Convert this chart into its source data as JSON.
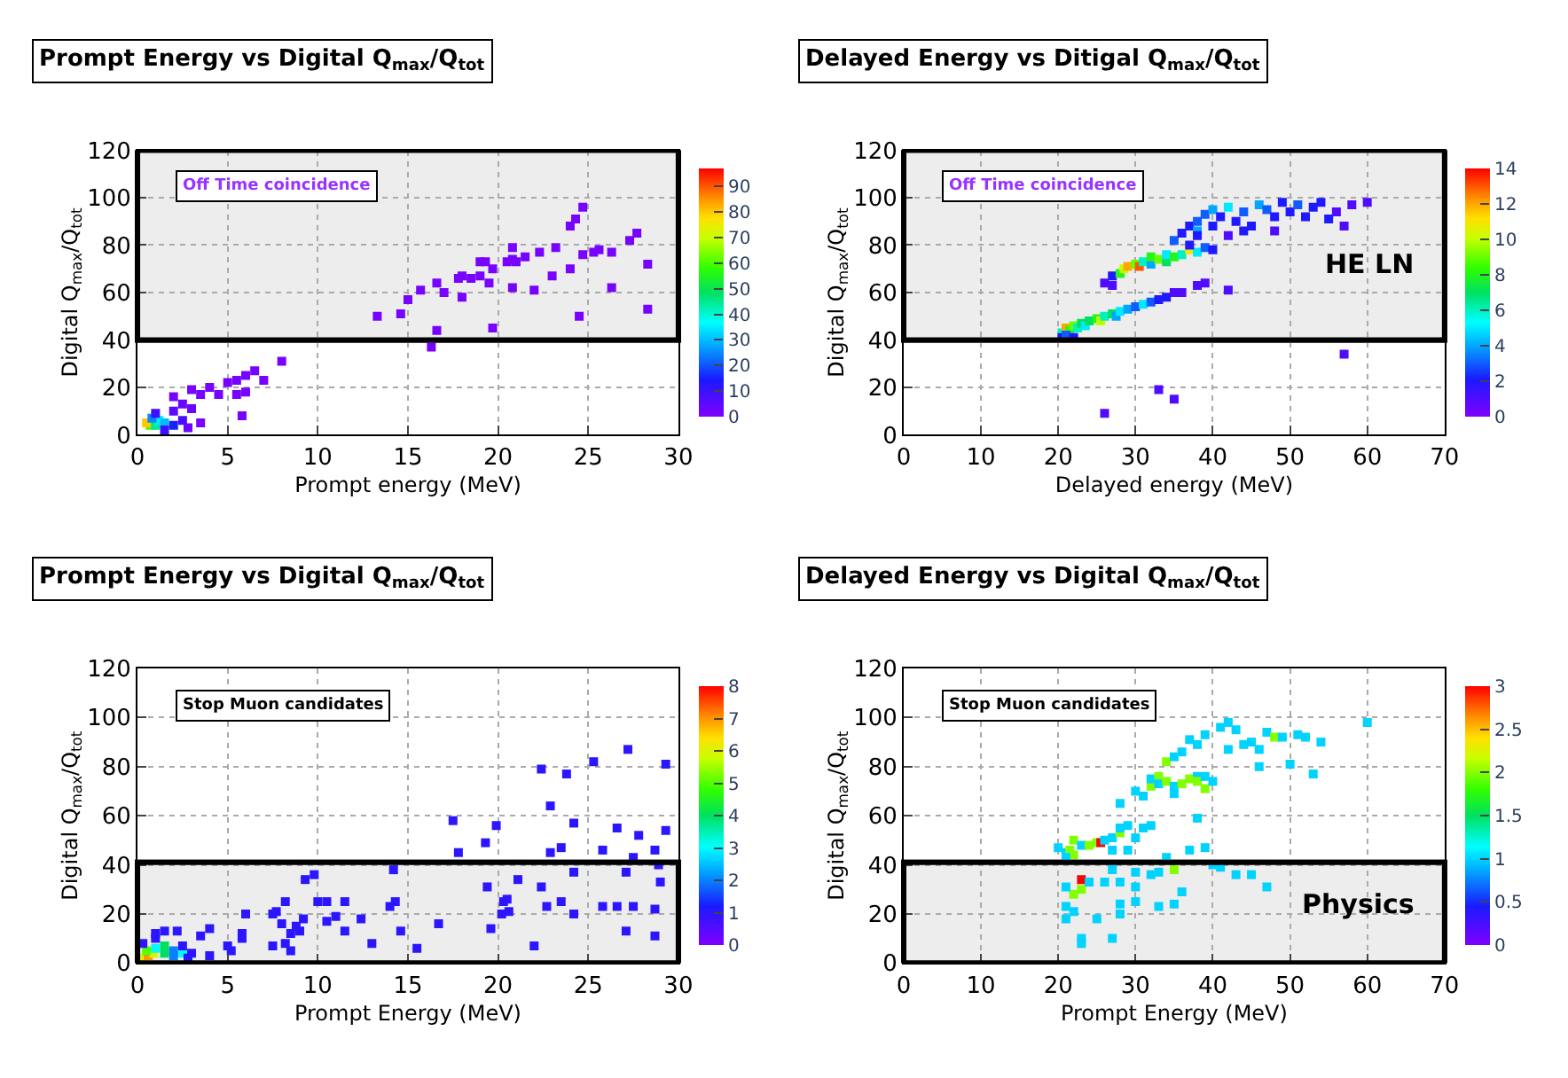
{
  "chart_data": [
    {
      "type": "scatter",
      "title": "Prompt Energy vs Digital Q$_{max}$/Q$_{tot}$",
      "xlabel": "Prompt energy (MeV)",
      "ylabel": "Digital Q$_{max}$/Q$_{tot}$",
      "xlim": [
        0,
        30
      ],
      "xticks": [
        0,
        5,
        10,
        15,
        20,
        25,
        30
      ],
      "ylim": [
        0,
        120
      ],
      "yticks": [
        0,
        20,
        40,
        60,
        80,
        100,
        120
      ],
      "clim": [
        0,
        97
      ],
      "cticks": [
        0,
        10,
        20,
        30,
        40,
        50,
        60,
        70,
        80,
        90
      ],
      "grid": true,
      "marker": "square",
      "annotations": [
        "Off Time coincidence"
      ],
      "bands": [
        {
          "axis": "y",
          "from": 40,
          "to": 120,
          "color": "#000000"
        }
      ],
      "x": [
        0.7,
        0.5,
        1,
        1.2,
        0.8,
        1.5,
        2,
        2.5,
        1,
        2,
        2.5,
        3,
        1.5,
        2.8,
        3.5,
        2,
        3,
        3.5,
        4,
        4.5,
        5,
        5.5,
        5.5,
        6,
        6,
        6.5,
        7,
        8,
        5.8,
        16.3,
        16.6,
        19.7,
        13.3,
        14.6,
        15,
        15.7,
        16.6,
        17,
        18,
        17.8,
        18,
        18.5,
        19,
        19.3,
        19.5,
        19.7,
        19,
        20.5,
        20.8,
        20.8,
        21,
        20.8,
        21.5,
        22,
        22.3,
        23.2,
        23,
        24,
        24,
        24.3,
        24.5,
        24.7,
        24.7,
        25.3,
        25.6,
        26.3,
        26.3,
        27.3,
        27.7,
        28.3,
        28.3
      ],
      "values": [
        4,
        5,
        4,
        6,
        7,
        5,
        4,
        6,
        9,
        10,
        13,
        11,
        2,
        3,
        5,
        16,
        19,
        17,
        20,
        17,
        22,
        17,
        23,
        25,
        18,
        27,
        23,
        31,
        8,
        37,
        44,
        45,
        50,
        51,
        57,
        61,
        64,
        60,
        58,
        66,
        67,
        66,
        73,
        73,
        64,
        70,
        67,
        73,
        74,
        79,
        73,
        62,
        75,
        61,
        77,
        79,
        67,
        70,
        88,
        91,
        50,
        96,
        76,
        77,
        78,
        77,
        62,
        82,
        85,
        72,
        53
      ],
      "cvalues": [
        60,
        80,
        45,
        35,
        25,
        30,
        15,
        8,
        10,
        5,
        3,
        3,
        10,
        3,
        1,
        1,
        1,
        1,
        1,
        1,
        1,
        1,
        1,
        1,
        1,
        1,
        1,
        1,
        1,
        1,
        1,
        1,
        1,
        1,
        1,
        1,
        1,
        1,
        1,
        1,
        1,
        1,
        1,
        1,
        1,
        1,
        1,
        1,
        1,
        1,
        1,
        1,
        1,
        1,
        1,
        1,
        1,
        1,
        1,
        1,
        1,
        1,
        1,
        1,
        1,
        1,
        1,
        1,
        1,
        1,
        1
      ]
    },
    {
      "type": "scatter",
      "title": "Delayed Energy vs Ditigal Q$_{max}$/Q$_{tot}$",
      "xlabel": "Delayed energy (MeV)",
      "ylabel": "Digital Q$_{max}$/Q$_{tot}$",
      "xlim": [
        0,
        70
      ],
      "xticks": [
        0,
        10,
        20,
        30,
        40,
        50,
        60,
        70
      ],
      "ylim": [
        0,
        120
      ],
      "yticks": [
        0,
        20,
        40,
        60,
        80,
        100,
        120
      ],
      "clim": [
        0,
        14
      ],
      "cticks": [
        0,
        2,
        4,
        6,
        8,
        10,
        12,
        14
      ],
      "grid": true,
      "marker": "square",
      "annotations": [
        "Off Time coincidence",
        "HE LN"
      ],
      "bands": [
        {
          "axis": "y",
          "from": 40,
          "to": 120,
          "color": "#000000"
        }
      ],
      "x": [
        20.5,
        21,
        21.5,
        22,
        22.5,
        23,
        23.5,
        24,
        25,
        25.5,
        26,
        27,
        27.5,
        28,
        29,
        30,
        31,
        32,
        33,
        34,
        35,
        36,
        38,
        39,
        42,
        20.5,
        21,
        22,
        27,
        28,
        28.5,
        29,
        30,
        30.5,
        31,
        32,
        32,
        33,
        34,
        34,
        35,
        36,
        37,
        38,
        39,
        40,
        37,
        27,
        26,
        35,
        36,
        37,
        38,
        38,
        39,
        40,
        40,
        41,
        42,
        43,
        44,
        45,
        46,
        47,
        48,
        49,
        50,
        51,
        52,
        53,
        54,
        55,
        56,
        57,
        58,
        60,
        44,
        48,
        42,
        38,
        57,
        33,
        35,
        26
      ],
      "values": [
        43,
        45,
        44,
        46,
        45,
        47,
        46,
        48,
        49,
        48,
        50,
        51,
        50,
        52,
        53,
        54,
        55,
        56,
        57,
        58,
        60,
        60,
        63,
        64,
        61,
        41,
        42,
        41,
        67,
        68,
        70,
        71,
        72,
        71,
        73,
        72,
        75,
        74,
        73,
        76,
        75,
        76,
        78,
        77,
        79,
        78,
        80,
        63,
        64,
        82,
        85,
        88,
        90,
        86,
        93,
        95,
        88,
        92,
        96,
        90,
        94,
        88,
        97,
        95,
        92,
        98,
        94,
        97,
        92,
        96,
        98,
        91,
        94,
        88,
        97,
        98,
        86,
        86,
        84,
        84,
        34,
        19,
        15,
        9
      ],
      "cvalues": [
        6,
        12,
        8,
        9,
        6,
        7,
        5,
        7,
        8,
        10,
        6,
        7,
        4,
        5,
        4,
        3,
        5,
        3,
        2,
        2,
        1,
        1,
        1,
        1,
        1,
        2,
        3,
        2,
        2,
        8,
        10,
        12,
        9,
        13,
        6,
        4,
        8,
        9,
        7,
        5,
        8,
        6,
        11,
        5,
        3,
        2,
        2,
        1,
        1,
        3,
        2,
        2,
        3,
        4,
        3,
        4,
        2,
        2,
        5,
        2,
        3,
        2,
        4,
        3,
        2,
        2,
        2,
        3,
        2,
        2,
        2,
        2,
        1,
        1,
        1,
        1,
        2,
        1,
        1,
        2,
        1,
        1,
        1,
        1
      ]
    },
    {
      "type": "scatter",
      "title": "Prompt Energy vs Digital Q$_{max}$/Q$_{tot}$",
      "xlabel": "Prompt Energy (MeV)",
      "ylabel": "Digital Q$_{max}$/Q$_{tot}$",
      "xlim": [
        0,
        30
      ],
      "xticks": [
        0,
        5,
        10,
        15,
        20,
        25,
        30
      ],
      "ylim": [
        0,
        120
      ],
      "yticks": [
        0,
        20,
        40,
        60,
        80,
        100,
        120
      ],
      "clim": [
        0,
        8
      ],
      "cticks": [
        0,
        1,
        2,
        3,
        4,
        5,
        6,
        7,
        8
      ],
      "grid": true,
      "marker": "square",
      "annotations": [
        "Stop Muon candidates"
      ],
      "bands": [
        {
          "axis": "y",
          "from": 0,
          "to": 41,
          "color": "#000000"
        }
      ],
      "x": [
        0.3,
        0.6,
        0.9,
        0.5,
        1,
        1.5,
        1.5,
        2,
        2.5,
        2.5,
        0.3,
        1,
        1,
        1.5,
        2.2,
        2,
        2.8,
        3,
        4,
        3.5,
        4,
        5,
        5.2,
        5.8,
        5.8,
        6,
        7.5,
        7.7,
        7.5,
        8,
        8.2,
        8.2,
        8.5,
        8.5,
        8.8,
        9,
        9.2,
        9.3,
        9.8,
        10,
        10.5,
        10.5,
        11,
        11.5,
        11.5,
        12.4,
        13,
        14,
        14.2,
        14.3,
        14.6,
        15.5,
        16.7,
        17.5,
        17.8,
        19.4,
        19.3,
        19.6,
        19.9,
        20.2,
        20.3,
        20.5,
        20.6,
        21.1,
        22,
        22.4,
        22.4,
        22.7,
        22.9,
        22.9,
        23.5,
        23.5,
        23.8,
        24.2,
        24.2,
        24.2,
        25.3,
        25.8,
        25.8,
        26.6,
        26.6,
        27.1,
        27.1,
        27.2,
        27.5,
        27.5,
        27.8,
        28.7,
        28.7,
        28.7,
        28.9,
        29,
        29.3,
        29.3
      ],
      "values": [
        2,
        3,
        4,
        5,
        6,
        4,
        7,
        5,
        4,
        7,
        8,
        10,
        12,
        13,
        13,
        3,
        2,
        4,
        3,
        11,
        14,
        7,
        5,
        10,
        12,
        20,
        20,
        21,
        7,
        16,
        8,
        25,
        5,
        12,
        15,
        13,
        18,
        34,
        36,
        25,
        25,
        17,
        19,
        13,
        25,
        18,
        8,
        23,
        38,
        25,
        13,
        6,
        16,
        58,
        45,
        31,
        49,
        14,
        56,
        20,
        25,
        26,
        21,
        34,
        7,
        31,
        79,
        23,
        64,
        45,
        25,
        47,
        77,
        37,
        57,
        20,
        82,
        23,
        46,
        23,
        55,
        13,
        37,
        87,
        23,
        43,
        52,
        11,
        22,
        46,
        40,
        33,
        54,
        81
      ],
      "cvalues": [
        6,
        7,
        6,
        5,
        3,
        4,
        4,
        2,
        3,
        1,
        1,
        1,
        1,
        1,
        1,
        2,
        1,
        1,
        1,
        1,
        1,
        1,
        1,
        1,
        1,
        1,
        1,
        1,
        1,
        1,
        1,
        1,
        1,
        1,
        1,
        1,
        1,
        1,
        1,
        1,
        1,
        1,
        1,
        1,
        1,
        1,
        1,
        1,
        1,
        1,
        1,
        1,
        1,
        1,
        1,
        1,
        1,
        1,
        1,
        1,
        1,
        1,
        1,
        1,
        1,
        1,
        1,
        1,
        1,
        1,
        1,
        1,
        1,
        1,
        1,
        1,
        1,
        1,
        1,
        1,
        1,
        1,
        1,
        1,
        1,
        1,
        1,
        1,
        1,
        1,
        1,
        1,
        1,
        1
      ]
    },
    {
      "type": "scatter",
      "title": "Delayed Energy vs Digital Q$_{max}$/Q$_{tot}$",
      "xlabel": "Prompt Energy (MeV)",
      "ylabel": "Digital Q$_{max}$/Q$_{tot}$",
      "xlim": [
        0,
        70
      ],
      "xticks": [
        0,
        10,
        20,
        30,
        40,
        50,
        60,
        70
      ],
      "ylim": [
        0,
        120
      ],
      "yticks": [
        0,
        20,
        40,
        60,
        80,
        100,
        120
      ],
      "clim": [
        0,
        3
      ],
      "cticks": [
        0,
        0.5,
        1,
        1.5,
        2,
        2.5,
        3
      ],
      "grid": true,
      "marker": "square",
      "annotations": [
        "Stop Muon candidates",
        "Physics"
      ],
      "bands": [
        {
          "axis": "y",
          "from": 0,
          "to": 41,
          "color": "#000000"
        }
      ],
      "x": [
        20,
        21,
        21.5,
        22,
        22,
        23,
        24,
        25,
        25.5,
        26,
        27,
        28,
        28,
        29,
        30,
        31,
        32,
        28,
        30,
        31,
        32,
        32,
        33,
        33,
        34,
        35,
        35,
        36,
        37,
        38,
        38,
        39,
        39,
        40,
        34,
        35,
        36,
        37,
        38,
        39,
        41,
        42,
        43,
        44,
        45,
        46,
        47,
        48,
        49,
        50,
        51,
        52,
        54,
        60,
        42,
        38,
        46,
        53,
        21,
        27,
        29,
        34,
        37,
        39,
        40,
        41,
        43,
        45,
        47,
        35,
        33,
        30,
        27,
        23,
        23,
        22,
        21,
        24,
        26,
        28,
        30,
        32,
        36,
        28,
        30,
        33,
        35,
        21,
        22,
        21,
        25,
        28,
        23,
        23,
        27
      ],
      "values": [
        47,
        45,
        46,
        50,
        44,
        48,
        48,
        49,
        49,
        50,
        51,
        53,
        55,
        56,
        51,
        55,
        56,
        65,
        70,
        68,
        72,
        75,
        76,
        73,
        74,
        72,
        69,
        73,
        75,
        76,
        74,
        71,
        76,
        74,
        82,
        84,
        86,
        91,
        89,
        93,
        96,
        87,
        95,
        89,
        90,
        87,
        94,
        92,
        92,
        81,
        93,
        92,
        90,
        98,
        98,
        59,
        80,
        77,
        43,
        46,
        46,
        43,
        46,
        47,
        40,
        39,
        36,
        36,
        31,
        38,
        37,
        37,
        38,
        34,
        30,
        28,
        31,
        33,
        33,
        33,
        31,
        36,
        29,
        24,
        25,
        23,
        24,
        23,
        21,
        18,
        18,
        20,
        10,
        8,
        10
      ],
      "cvalues": [
        1,
        1,
        2,
        2,
        2,
        1,
        2,
        2,
        3,
        1,
        1,
        2,
        1,
        1,
        1,
        1,
        1,
        1,
        1,
        1,
        2,
        1,
        2,
        1,
        2,
        1,
        1,
        2,
        2,
        1,
        2,
        2,
        1,
        1,
        2,
        1,
        1,
        1,
        1,
        1,
        1,
        1,
        1,
        1,
        1,
        1,
        1,
        2,
        1,
        1,
        1,
        1,
        1,
        1,
        1,
        1,
        1,
        1,
        1,
        1,
        1,
        1,
        1,
        1,
        1,
        1,
        1,
        1,
        1,
        2,
        1,
        1,
        1,
        3,
        2,
        2,
        1,
        1,
        1,
        1,
        1,
        1,
        1,
        1,
        1,
        1,
        1,
        1,
        1,
        1,
        1,
        1,
        1,
        1,
        1
      ]
    }
  ]
}
